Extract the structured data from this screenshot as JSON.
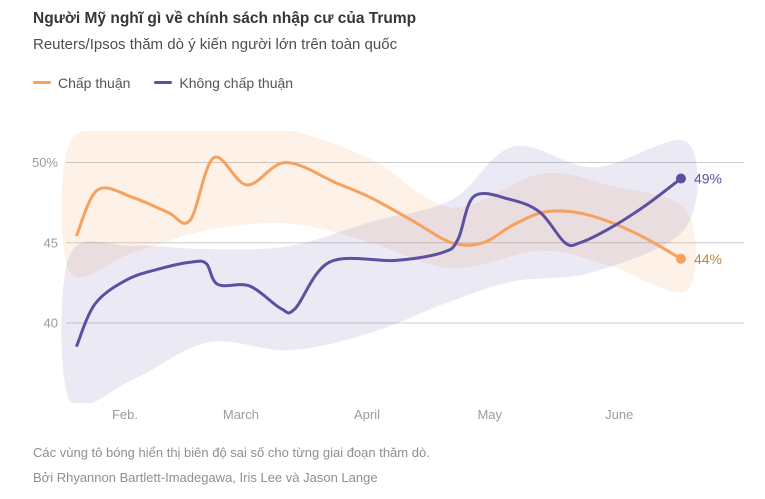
{
  "header": {
    "title": "Người Mỹ nghĩ gì về chính sách nhập cư của Trump",
    "subtitle": "Reuters/Ipsos thăm dò ý kiến người lớn trên toàn quốc"
  },
  "legend": {
    "items": [
      {
        "key": "approve",
        "label": "Chấp thuận",
        "color": "#f6a15e"
      },
      {
        "key": "disapprove",
        "label": "Không chấp thuận",
        "color": "#5d4fa1"
      }
    ]
  },
  "chart_data": {
    "type": "line",
    "unit": "%",
    "grid": "horizontal",
    "legend_position": "top-left",
    "x_axis": {
      "label": "",
      "ticks": [
        {
          "label": "Feb.",
          "t": 0.087
        },
        {
          "label": "March",
          "t": 0.258
        },
        {
          "label": "April",
          "t": 0.444
        },
        {
          "label": "May",
          "t": 0.625
        },
        {
          "label": "June",
          "t": 0.816
        }
      ]
    },
    "y_axis": {
      "label": "",
      "ticks": [
        {
          "label": "50%",
          "value": 50
        },
        {
          "label": "45",
          "value": 45
        },
        {
          "label": "40",
          "value": 40
        }
      ],
      "range": [
        35,
        52
      ]
    },
    "series": [
      {
        "key": "approve",
        "name": "Chấp thuận",
        "color": "#f6a15e",
        "label_color": "#c2843e",
        "end_label": "44%",
        "end_value": 44,
        "points": [
          {
            "t": 0.016,
            "v": 45.5
          },
          {
            "t": 0.047,
            "v": 48.3
          },
          {
            "t": 0.1,
            "v": 47.8
          },
          {
            "t": 0.15,
            "v": 46.9
          },
          {
            "t": 0.183,
            "v": 46.4
          },
          {
            "t": 0.218,
            "v": 50.3
          },
          {
            "t": 0.267,
            "v": 48.6
          },
          {
            "t": 0.324,
            "v": 50.0
          },
          {
            "t": 0.4,
            "v": 48.7
          },
          {
            "t": 0.45,
            "v": 47.8
          },
          {
            "t": 0.51,
            "v": 46.4
          },
          {
            "t": 0.569,
            "v": 45.0
          },
          {
            "t": 0.615,
            "v": 45.0
          },
          {
            "t": 0.659,
            "v": 46.1
          },
          {
            "t": 0.704,
            "v": 46.9
          },
          {
            "t": 0.751,
            "v": 46.9
          },
          {
            "t": 0.802,
            "v": 46.3
          },
          {
            "t": 0.854,
            "v": 45.3
          },
          {
            "t": 0.907,
            "v": 44.0
          }
        ],
        "band_color": "rgba(246,161,94,0.15)",
        "band": [
          {
            "t": 0.005,
            "lo": 43.2,
            "hi": 51.2
          },
          {
            "t": 0.1,
            "lo": 44.4,
            "hi": 52.0
          },
          {
            "t": 0.21,
            "lo": 45.8,
            "hi": 52.4
          },
          {
            "t": 0.33,
            "lo": 46.2,
            "hi": 52.0
          },
          {
            "t": 0.45,
            "lo": 45.0,
            "hi": 50.2
          },
          {
            "t": 0.57,
            "lo": 43.4,
            "hi": 47.2
          },
          {
            "t": 0.7,
            "lo": 44.5,
            "hi": 49.3
          },
          {
            "t": 0.8,
            "lo": 43.6,
            "hi": 48.6
          },
          {
            "t": 0.915,
            "lo": 42.0,
            "hi": 47.0
          }
        ]
      },
      {
        "key": "disapprove",
        "name": "Không chấp thuận",
        "color": "#5d4fa1",
        "label_color": "#5d4fa1",
        "end_label": "49%",
        "end_value": 49,
        "points": [
          {
            "t": 0.016,
            "v": 38.6
          },
          {
            "t": 0.043,
            "v": 41.2
          },
          {
            "t": 0.09,
            "v": 42.7
          },
          {
            "t": 0.14,
            "v": 43.4
          },
          {
            "t": 0.186,
            "v": 43.8
          },
          {
            "t": 0.207,
            "v": 43.7
          },
          {
            "t": 0.224,
            "v": 42.4
          },
          {
            "t": 0.271,
            "v": 42.3
          },
          {
            "t": 0.317,
            "v": 40.9
          },
          {
            "t": 0.338,
            "v": 40.9
          },
          {
            "t": 0.389,
            "v": 43.8
          },
          {
            "t": 0.487,
            "v": 43.9
          },
          {
            "t": 0.556,
            "v": 44.4
          },
          {
            "t": 0.578,
            "v": 45.2
          },
          {
            "t": 0.602,
            "v": 47.9
          },
          {
            "t": 0.655,
            "v": 47.7
          },
          {
            "t": 0.699,
            "v": 46.9
          },
          {
            "t": 0.736,
            "v": 45.0
          },
          {
            "t": 0.758,
            "v": 45.0
          },
          {
            "t": 0.802,
            "v": 45.9
          },
          {
            "t": 0.854,
            "v": 47.3
          },
          {
            "t": 0.907,
            "v": 49.0
          }
        ],
        "band_color": "rgba(93,79,161,0.12)",
        "band": [
          {
            "t": 0.005,
            "lo": 35.2,
            "hi": 44.2
          },
          {
            "t": 0.1,
            "lo": 36.5,
            "hi": 44.8
          },
          {
            "t": 0.21,
            "lo": 38.8,
            "hi": 44.6
          },
          {
            "t": 0.33,
            "lo": 38.3,
            "hi": 44.8
          },
          {
            "t": 0.45,
            "lo": 39.4,
            "hi": 46.3
          },
          {
            "t": 0.57,
            "lo": 41.4,
            "hi": 47.7
          },
          {
            "t": 0.66,
            "lo": 42.6,
            "hi": 51.0
          },
          {
            "t": 0.78,
            "lo": 43.2,
            "hi": 49.7
          },
          {
            "t": 0.915,
            "lo": 46.0,
            "hi": 51.3
          }
        ]
      }
    ]
  },
  "footer": {
    "note": "Các vùng tô bóng hiển thị biên độ sai số cho từng giai đoạn thăm dò.",
    "byline": "Bởi Rhyannon Bartlett-Imadegawa, Iris Lee và Jason Lange"
  }
}
